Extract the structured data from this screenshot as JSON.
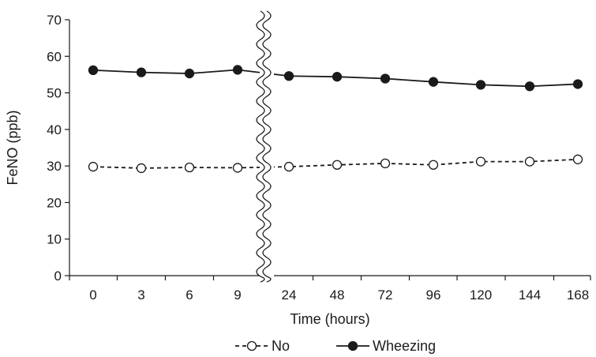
{
  "chart_data": {
    "type": "line",
    "xlabel": "Time (hours)",
    "ylabel": "FeNO (ppb)",
    "ylim": [
      0,
      70
    ],
    "yticks": [
      0,
      10,
      20,
      30,
      40,
      50,
      60,
      70
    ],
    "categories": [
      "0",
      "3",
      "6",
      "9",
      "24",
      "48",
      "72",
      "96",
      "120",
      "144",
      "168"
    ],
    "axis_break": "between 9 and 24",
    "grid": false,
    "legend_position": "bottom",
    "series": [
      {
        "name": "No",
        "style": "dashed",
        "marker": "open-circle",
        "color": "#1a1a1a",
        "values": [
          29.8,
          29.4,
          29.6,
          29.5,
          29.8,
          30.3,
          30.7,
          30.3,
          31.2,
          31.2,
          31.8
        ]
      },
      {
        "name": "Wheezing",
        "style": "solid",
        "marker": "filled-circle",
        "color": "#1a1a1a",
        "values": [
          56.2,
          55.6,
          55.3,
          56.3,
          54.6,
          54.4,
          53.9,
          53.0,
          52.2,
          51.8,
          52.4
        ]
      }
    ]
  }
}
